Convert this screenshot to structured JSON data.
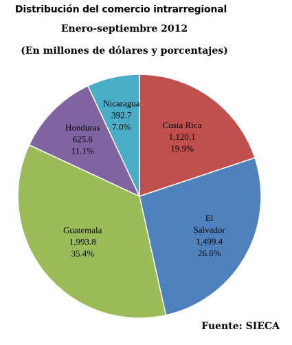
{
  "header": {
    "title": "Distribución del comercio intrarregional",
    "subtitle": "Enero-septiembre 2012",
    "units": "(En millones de dólares y porcentajes)"
  },
  "footer": {
    "source": "Fuente: SIECA"
  },
  "chart_data": {
    "type": "pie",
    "title": "Distribución del comercio intrarregional",
    "subtitle": "Enero-septiembre 2012",
    "units": "(En millones de dólares y porcentajes)",
    "legend": "none (labels inside slices)",
    "slices": [
      {
        "label": "Costa Rica",
        "label_lines": [
          "Costa Rica"
        ],
        "value": 1120.1,
        "value_text": "1,120.1",
        "percent": 19.9,
        "percent_text": "19.9%",
        "color": "#c0504d"
      },
      {
        "label": "El Salvador",
        "label_lines": [
          "El",
          "Salvador"
        ],
        "value": 1499.4,
        "value_text": "1,499.4",
        "percent": 26.6,
        "percent_text": "26.6%",
        "color": "#4f81bd"
      },
      {
        "label": "Guatemala",
        "label_lines": [
          "Guatemala"
        ],
        "value": 1993.8,
        "value_text": "1,993.8",
        "percent": 35.4,
        "percent_text": "35.4%",
        "color": "#9bbb59"
      },
      {
        "label": "Honduras",
        "label_lines": [
          "Honduras"
        ],
        "value": 625.6,
        "value_text": "625.6",
        "percent": 11.1,
        "percent_text": "11.1%",
        "color": "#8064a2"
      },
      {
        "label": "Nicaragua",
        "label_lines": [
          "Nicaragua"
        ],
        "value": 392.7,
        "value_text": "392.7",
        "percent": 7.0,
        "percent_text": "7.0%",
        "color": "#4bacc6"
      }
    ]
  }
}
